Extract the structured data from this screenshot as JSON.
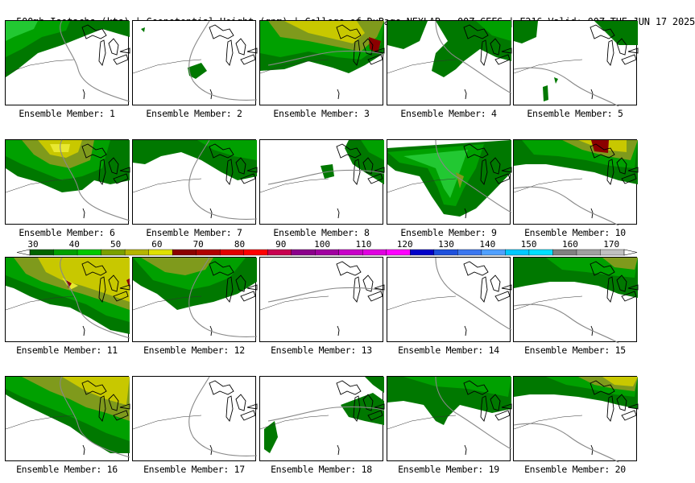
{
  "header": {
    "title": "500mb Isotachs (kts) | Geopotential Height (gpm) | College of DuPage NEXLAB",
    "run_info": "00Z GEFS | F216 Valid: 00Z TUE JUN 17 2025"
  },
  "colorbar": {
    "ticks": [
      "30",
      "40",
      "50",
      "60",
      "70",
      "80",
      "90",
      "100",
      "110",
      "120",
      "130",
      "140",
      "150",
      "160",
      "170"
    ],
    "colors": [
      "#006400",
      "#00a000",
      "#00c800",
      "#7ba000",
      "#b4b400",
      "#e0e000",
      "#8b0000",
      "#b00000",
      "#e00000",
      "#ff0000",
      "#c80050",
      "#8b008b",
      "#a000a0",
      "#c800c8",
      "#e000e0",
      "#ff00ff",
      "#0000c8",
      "#1e50dc",
      "#3c78f0",
      "#50a0ff",
      "#00c8ff",
      "#00e0ff",
      "#808080",
      "#a0a0a0",
      "#c0c0c0"
    ]
  },
  "panel_label_prefix": "Ensemble Member: ",
  "members": [
    {
      "n": "1",
      "label": "Ensemble Member: 1"
    },
    {
      "n": "2",
      "label": "Ensemble Member: 2"
    },
    {
      "n": "3",
      "label": "Ensemble Member: 3"
    },
    {
      "n": "4",
      "label": "Ensemble Member: 4"
    },
    {
      "n": "5",
      "label": "Ensemble Member: 5"
    },
    {
      "n": "6",
      "label": "Ensemble Member: 6"
    },
    {
      "n": "7",
      "label": "Ensemble Member: 7"
    },
    {
      "n": "8",
      "label": "Ensemble Member: 8"
    },
    {
      "n": "9",
      "label": "Ensemble Member: 9"
    },
    {
      "n": "10",
      "label": "Ensemble Member: 10"
    },
    {
      "n": "11",
      "label": "Ensemble Member: 11"
    },
    {
      "n": "12",
      "label": "Ensemble Member: 12"
    },
    {
      "n": "13",
      "label": "Ensemble Member: 13"
    },
    {
      "n": "14",
      "label": "Ensemble Member: 14"
    },
    {
      "n": "15",
      "label": "Ensemble Member: 15"
    },
    {
      "n": "16",
      "label": "Ensemble Member: 16"
    },
    {
      "n": "17",
      "label": "Ensemble Member: 17"
    },
    {
      "n": "18",
      "label": "Ensemble Member: 18"
    },
    {
      "n": "19",
      "label": "Ensemble Member: 19"
    },
    {
      "n": "20",
      "label": "Ensemble Member: 20"
    }
  ]
}
